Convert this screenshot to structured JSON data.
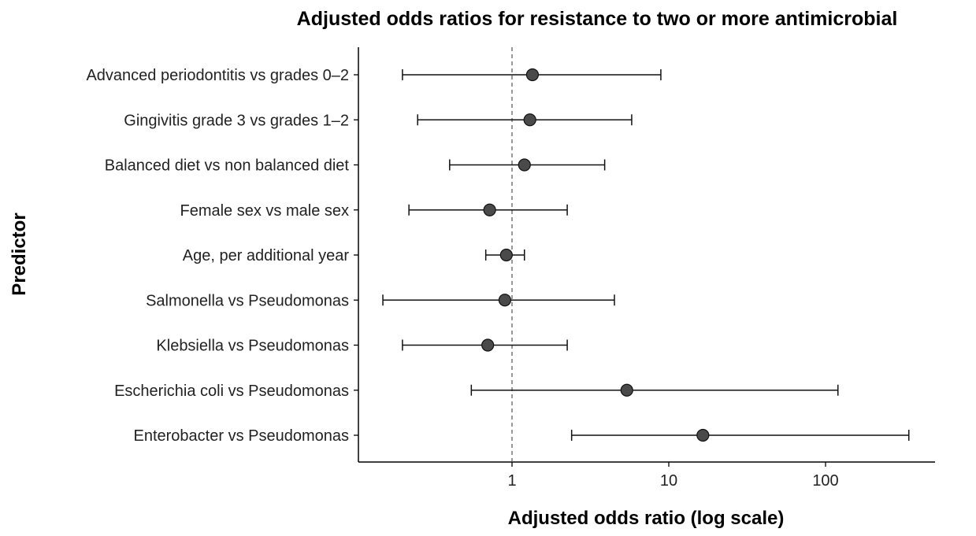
{
  "chart_data": {
    "type": "scatter",
    "title": "Adjusted odds ratios for resistance to two or more antimicrobial",
    "xlabel": "Adjusted odds ratio (log scale)",
    "ylabel": "Predictor",
    "x_scale": "log",
    "xlim": [
      0.1,
      500
    ],
    "x_ticks": [
      1,
      10,
      100
    ],
    "x_tick_labels": [
      "1",
      "10",
      "100"
    ],
    "reference_line": 1,
    "grid": false,
    "series": [
      {
        "points": [
          {
            "label": "Advanced periodontitis vs grades 0–2",
            "or": 1.35,
            "lower": 0.2,
            "upper": 8.9
          },
          {
            "label": "Gingivitis grade 3 vs grades 1–2",
            "or": 1.3,
            "lower": 0.25,
            "upper": 5.8
          },
          {
            "label": "Balanced diet vs non balanced diet",
            "or": 1.2,
            "lower": 0.4,
            "upper": 3.9
          },
          {
            "label": "Female sex vs male sex",
            "or": 0.72,
            "lower": 0.22,
            "upper": 2.25
          },
          {
            "label": "Age, per additional year",
            "or": 0.92,
            "lower": 0.68,
            "upper": 1.2
          },
          {
            "label": "Salmonella vs Pseudomonas",
            "or": 0.9,
            "lower": 0.15,
            "upper": 4.5
          },
          {
            "label": "Klebsiella vs Pseudomonas",
            "or": 0.7,
            "lower": 0.2,
            "upper": 2.25
          },
          {
            "label": "Escherichia coli vs Pseudomonas",
            "or": 5.4,
            "lower": 0.55,
            "upper": 120
          },
          {
            "label": "Enterobacter vs Pseudomonas",
            "or": 16.5,
            "lower": 2.4,
            "upper": 340
          }
        ]
      }
    ]
  }
}
